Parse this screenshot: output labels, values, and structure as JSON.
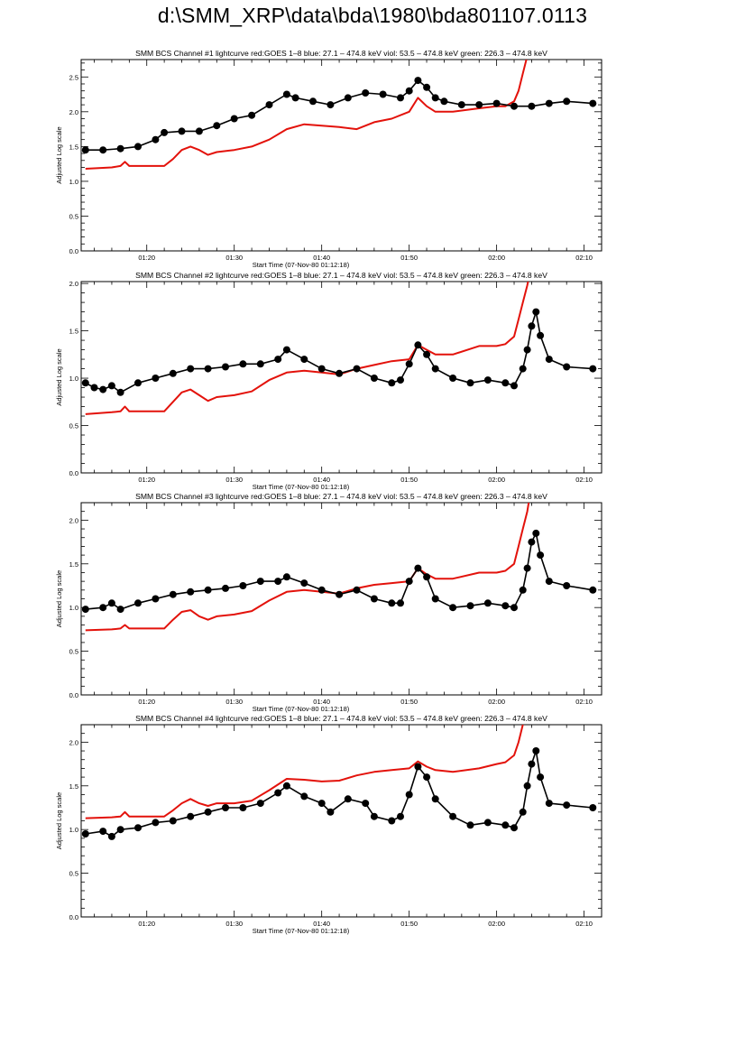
{
  "page": {
    "title": "d:\\SMM_XRP\\data\\bda\\1980\\bda801107.0113"
  },
  "colors": {
    "goes": "#e3120b",
    "bcs": "#000000",
    "axis": "#000000"
  },
  "chart_data": [
    {
      "type": "line",
      "title": "SMM BCS Channel #1 lightcurve  red:GOES 1–8  blue: 27.1 – 474.8 keV  viol: 53.5 – 474.8 keV  green: 226.3 – 474.8 keV",
      "xlabel": "Start Time (07-Nov-80 01:12:18)",
      "ylabel": "Adjusted Log scale",
      "xlim": [
        "01:12:30",
        "02:12:00"
      ],
      "ylim": [
        0.0,
        2.75
      ],
      "xticks": [
        "01:20",
        "01:30",
        "01:40",
        "01:50",
        "02:00",
        "02:10"
      ],
      "yticks": [
        "0.0",
        "0.5",
        "1.0",
        "1.5",
        "2.0",
        "2.5"
      ],
      "series": [
        {
          "name": "GOES 1–8",
          "color": "red",
          "style": "line",
          "x": [
            "01:13",
            "01:16",
            "01:17",
            "01:17:30",
            "01:18",
            "01:22",
            "01:23",
            "01:24",
            "01:25",
            "01:26",
            "01:27",
            "01:28",
            "01:30",
            "01:32",
            "01:34",
            "01:36",
            "01:38",
            "01:40",
            "01:42",
            "01:44",
            "01:46",
            "01:48",
            "01:50",
            "01:51",
            "01:52",
            "01:53",
            "01:55",
            "01:58",
            "02:00",
            "02:01",
            "02:02",
            "02:02:30",
            "02:03",
            "02:03:30",
            "02:04"
          ],
          "y": [
            1.18,
            1.2,
            1.22,
            1.28,
            1.22,
            1.22,
            1.32,
            1.45,
            1.5,
            1.45,
            1.38,
            1.42,
            1.45,
            1.5,
            1.6,
            1.75,
            1.82,
            1.8,
            1.78,
            1.75,
            1.85,
            1.9,
            2.0,
            2.2,
            2.08,
            2.0,
            2.0,
            2.05,
            2.08,
            2.08,
            2.15,
            2.3,
            2.55,
            2.8,
            3.1
          ]
        },
        {
          "name": "BCS channel #1",
          "color": "black",
          "style": "line+markers",
          "x": [
            "01:13",
            "01:15",
            "01:17",
            "01:19",
            "01:21",
            "01:22",
            "01:24",
            "01:26",
            "01:28",
            "01:30",
            "01:32",
            "01:34",
            "01:36",
            "01:37",
            "01:39",
            "01:41",
            "01:43",
            "01:45",
            "01:47",
            "01:49",
            "01:50",
            "01:51",
            "01:52",
            "01:53",
            "01:54",
            "01:56",
            "01:58",
            "02:00",
            "02:02",
            "02:04",
            "02:06",
            "02:08",
            "02:11"
          ],
          "y": [
            1.45,
            1.45,
            1.47,
            1.5,
            1.6,
            1.7,
            1.72,
            1.72,
            1.8,
            1.9,
            1.95,
            2.1,
            2.25,
            2.2,
            2.15,
            2.1,
            2.2,
            2.27,
            2.25,
            2.2,
            2.3,
            2.45,
            2.35,
            2.2,
            2.15,
            2.1,
            2.1,
            2.12,
            2.08,
            2.08,
            2.12,
            2.15,
            2.12
          ]
        }
      ]
    },
    {
      "type": "line",
      "title": "SMM BCS Channel #2 lightcurve  red:GOES 1–8  blue: 27.1 – 474.8 keV  viol: 53.5 – 474.8 keV  green: 226.3 – 474.8 keV",
      "xlabel": "Start Time (07-Nov-80 01:12:18)",
      "ylabel": "Adjusted Log scale",
      "xlim": [
        "01:12:30",
        "02:12:00"
      ],
      "ylim": [
        0.0,
        2.02
      ],
      "xticks": [
        "01:20",
        "01:30",
        "01:40",
        "01:50",
        "02:00",
        "02:10"
      ],
      "yticks": [
        "0.0",
        "0.5",
        "1.0",
        "1.5",
        "2.0"
      ],
      "series": [
        {
          "name": "GOES 1–8",
          "color": "red",
          "style": "line",
          "x": [
            "01:13",
            "01:16",
            "01:17",
            "01:17:30",
            "01:18",
            "01:22",
            "01:23",
            "01:24",
            "01:25",
            "01:26",
            "01:27",
            "01:28",
            "01:30",
            "01:32",
            "01:34",
            "01:36",
            "01:38",
            "01:40",
            "01:42",
            "01:44",
            "01:46",
            "01:48",
            "01:50",
            "01:51",
            "01:52",
            "01:53",
            "01:55",
            "01:58",
            "02:00",
            "02:01",
            "02:02",
            "02:02:30",
            "02:03",
            "02:03:30",
            "02:04"
          ],
          "y": [
            0.62,
            0.64,
            0.65,
            0.7,
            0.65,
            0.65,
            0.75,
            0.85,
            0.88,
            0.82,
            0.76,
            0.8,
            0.82,
            0.86,
            0.98,
            1.06,
            1.08,
            1.06,
            1.04,
            1.1,
            1.14,
            1.18,
            1.2,
            1.35,
            1.3,
            1.25,
            1.25,
            1.34,
            1.34,
            1.36,
            1.44,
            1.62,
            1.8,
            1.98,
            2.2
          ]
        },
        {
          "name": "BCS channel #2",
          "color": "black",
          "style": "line+markers",
          "x": [
            "01:13",
            "01:14",
            "01:15",
            "01:16",
            "01:17",
            "01:19",
            "01:21",
            "01:23",
            "01:25",
            "01:27",
            "01:29",
            "01:31",
            "01:33",
            "01:35",
            "01:36",
            "01:38",
            "01:40",
            "01:42",
            "01:44",
            "01:46",
            "01:48",
            "01:49",
            "01:50",
            "01:51",
            "01:52",
            "01:53",
            "01:55",
            "01:57",
            "01:59",
            "02:01",
            "02:02",
            "02:03",
            "02:03:30",
            "02:04",
            "02:04:30",
            "02:05",
            "02:06",
            "02:08",
            "02:11"
          ],
          "y": [
            0.95,
            0.9,
            0.88,
            0.92,
            0.85,
            0.95,
            1.0,
            1.05,
            1.1,
            1.1,
            1.12,
            1.15,
            1.15,
            1.2,
            1.3,
            1.2,
            1.1,
            1.05,
            1.1,
            1.0,
            0.95,
            0.98,
            1.15,
            1.35,
            1.25,
            1.1,
            1.0,
            0.95,
            0.98,
            0.95,
            0.92,
            1.1,
            1.3,
            1.55,
            1.7,
            1.45,
            1.2,
            1.12,
            1.1
          ]
        }
      ]
    },
    {
      "type": "line",
      "title": "SMM BCS Channel #3 lightcurve  red:GOES 1–8  blue: 27.1 – 474.8 keV  viol: 53.5 – 474.8 keV  green: 226.3 – 474.8 keV",
      "xlabel": "Start Time (07-Nov-80 01:12:18)",
      "ylabel": "Adjusted Log scale",
      "xlim": [
        "01:12:30",
        "02:12:00"
      ],
      "ylim": [
        0.0,
        2.2
      ],
      "xticks": [
        "01:20",
        "01:30",
        "01:40",
        "01:50",
        "02:00",
        "02:10"
      ],
      "yticks": [
        "0.0",
        "0.5",
        "1.0",
        "1.5",
        "2.0"
      ],
      "series": [
        {
          "name": "GOES 1–8",
          "color": "red",
          "style": "line",
          "x": [
            "01:13",
            "01:16",
            "01:17",
            "01:17:30",
            "01:18",
            "01:22",
            "01:23",
            "01:24",
            "01:25",
            "01:26",
            "01:27",
            "01:28",
            "01:30",
            "01:32",
            "01:34",
            "01:36",
            "01:38",
            "01:40",
            "01:42",
            "01:44",
            "01:46",
            "01:48",
            "01:50",
            "01:51",
            "01:52",
            "01:53",
            "01:55",
            "01:58",
            "02:00",
            "02:01",
            "02:02",
            "02:02:30",
            "02:03",
            "02:03:30",
            "02:04"
          ],
          "y": [
            0.74,
            0.75,
            0.76,
            0.8,
            0.76,
            0.76,
            0.86,
            0.95,
            0.97,
            0.9,
            0.86,
            0.9,
            0.92,
            0.96,
            1.08,
            1.18,
            1.2,
            1.18,
            1.16,
            1.22,
            1.26,
            1.28,
            1.3,
            1.45,
            1.38,
            1.33,
            1.33,
            1.4,
            1.4,
            1.42,
            1.5,
            1.7,
            1.9,
            2.1,
            2.4
          ]
        },
        {
          "name": "BCS channel #3",
          "color": "black",
          "style": "line+markers",
          "x": [
            "01:13",
            "01:15",
            "01:16",
            "01:17",
            "01:19",
            "01:21",
            "01:23",
            "01:25",
            "01:27",
            "01:29",
            "01:31",
            "01:33",
            "01:35",
            "01:36",
            "01:38",
            "01:40",
            "01:42",
            "01:44",
            "01:46",
            "01:48",
            "01:49",
            "01:50",
            "01:51",
            "01:52",
            "01:53",
            "01:55",
            "01:57",
            "01:59",
            "02:01",
            "02:02",
            "02:03",
            "02:03:30",
            "02:04",
            "02:04:30",
            "02:05",
            "02:06",
            "02:08",
            "02:11"
          ],
          "y": [
            0.98,
            1.0,
            1.05,
            0.98,
            1.05,
            1.1,
            1.15,
            1.18,
            1.2,
            1.22,
            1.25,
            1.3,
            1.3,
            1.35,
            1.28,
            1.2,
            1.15,
            1.2,
            1.1,
            1.05,
            1.05,
            1.3,
            1.45,
            1.35,
            1.1,
            1.0,
            1.02,
            1.05,
            1.02,
            1.0,
            1.2,
            1.45,
            1.75,
            1.85,
            1.6,
            1.3,
            1.25,
            1.2
          ]
        }
      ]
    },
    {
      "type": "line",
      "title": "SMM BCS Channel #4 lightcurve  red:GOES 1–8  blue: 27.1 – 474.8 keV  viol: 53.5 – 474.8 keV  green: 226.3 – 474.8 keV",
      "xlabel": "Start Time (07-Nov-80 01:12:18)",
      "ylabel": "Adjusted Log scale",
      "xlim": [
        "01:12:30",
        "02:12:00"
      ],
      "ylim": [
        0.0,
        2.2
      ],
      "xticks": [
        "01:20",
        "01:30",
        "01:40",
        "01:50",
        "02:00",
        "02:10"
      ],
      "yticks": [
        "0.0",
        "0.5",
        "1.0",
        "1.5",
        "2.0"
      ],
      "series": [
        {
          "name": "GOES 1–8",
          "color": "red",
          "style": "line",
          "x": [
            "01:13",
            "01:16",
            "01:17",
            "01:17:30",
            "01:18",
            "01:22",
            "01:23",
            "01:24",
            "01:25",
            "01:26",
            "01:27",
            "01:28",
            "01:30",
            "01:32",
            "01:34",
            "01:36",
            "01:38",
            "01:40",
            "01:42",
            "01:44",
            "01:46",
            "01:48",
            "01:50",
            "01:51",
            "01:52",
            "01:53",
            "01:55",
            "01:58",
            "02:00",
            "02:01",
            "02:02",
            "02:02:30",
            "02:03",
            "02:03:30",
            "02:04"
          ],
          "y": [
            1.13,
            1.14,
            1.15,
            1.2,
            1.15,
            1.15,
            1.22,
            1.3,
            1.35,
            1.3,
            1.27,
            1.3,
            1.3,
            1.33,
            1.45,
            1.58,
            1.57,
            1.55,
            1.56,
            1.62,
            1.66,
            1.68,
            1.7,
            1.78,
            1.72,
            1.68,
            1.66,
            1.7,
            1.75,
            1.77,
            1.85,
            2.0,
            2.2,
            2.4,
            2.7
          ]
        },
        {
          "name": "BCS channel #4",
          "color": "black",
          "style": "line+markers",
          "x": [
            "01:13",
            "01:15",
            "01:16",
            "01:17",
            "01:19",
            "01:21",
            "01:23",
            "01:25",
            "01:27",
            "01:29",
            "01:31",
            "01:33",
            "01:35",
            "01:36",
            "01:38",
            "01:40",
            "01:41",
            "01:43",
            "01:45",
            "01:46",
            "01:48",
            "01:49",
            "01:50",
            "01:51",
            "01:52",
            "01:53",
            "01:55",
            "01:57",
            "01:59",
            "02:01",
            "02:02",
            "02:03",
            "02:03:30",
            "02:04",
            "02:04:30",
            "02:05",
            "02:06",
            "02:08",
            "02:11"
          ],
          "y": [
            0.95,
            0.98,
            0.92,
            1.0,
            1.02,
            1.08,
            1.1,
            1.15,
            1.2,
            1.25,
            1.25,
            1.3,
            1.42,
            1.5,
            1.38,
            1.3,
            1.2,
            1.35,
            1.3,
            1.15,
            1.1,
            1.15,
            1.4,
            1.72,
            1.6,
            1.35,
            1.15,
            1.05,
            1.08,
            1.05,
            1.02,
            1.2,
            1.5,
            1.75,
            1.9,
            1.6,
            1.3,
            1.28,
            1.25
          ]
        }
      ]
    }
  ]
}
